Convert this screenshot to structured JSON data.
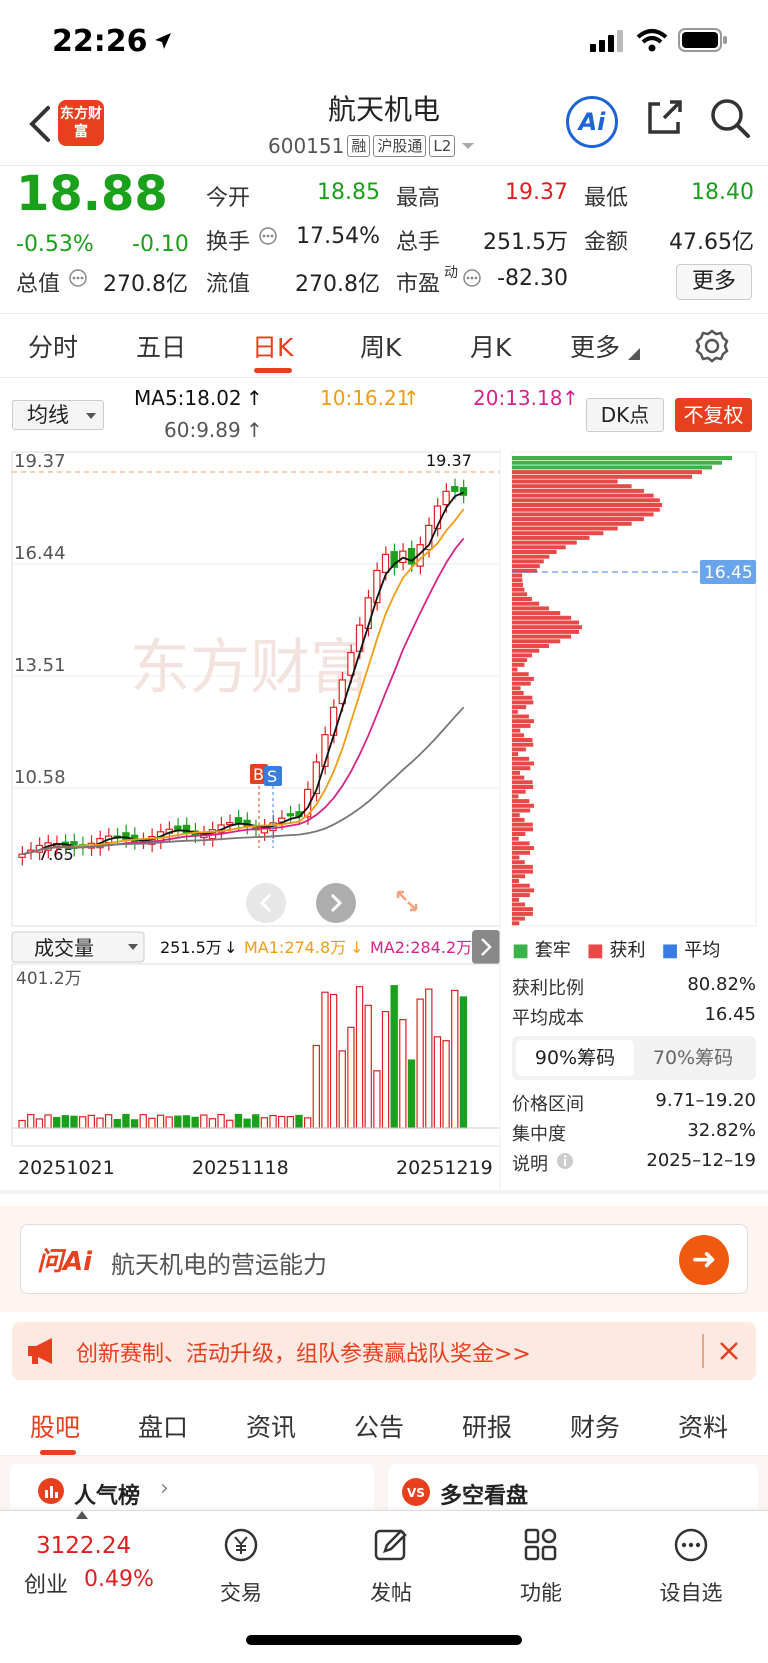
{
  "status": {
    "time": "22:26"
  },
  "header": {
    "logo_text": "东方财富",
    "stock_name": "航天机电",
    "code": "600151",
    "tags": [
      "融",
      "沪股通",
      "L2"
    ]
  },
  "ai_label": "Ai",
  "quote": {
    "price": "18.88",
    "change_pct": "-0.53%",
    "change": "-0.10",
    "rows": [
      [
        {
          "label": "今开",
          "value": "18.85",
          "color": "green"
        },
        {
          "label": "最高",
          "value": "19.37",
          "color": "red"
        },
        {
          "label": "最低",
          "value": "18.40",
          "color": "green"
        }
      ],
      [
        {
          "label": "换手",
          "value": "17.54%",
          "color": "black"
        },
        {
          "label": "总手",
          "value": "251.5万",
          "color": "black"
        },
        {
          "label": "金额",
          "value": "47.65亿",
          "color": "black"
        }
      ]
    ],
    "row3": {
      "total_label": "总值",
      "total_value": "270.8亿",
      "float_label": "流值",
      "float_value": "270.8亿",
      "pe_label": "市盈",
      "pe_sup": "动",
      "pe_value": "-82.30"
    },
    "more": "更多"
  },
  "period_tabs": [
    "分时",
    "五日",
    "日K",
    "周K",
    "月K",
    "更多"
  ],
  "active_period": "日K",
  "ma_row": {
    "select_label": "均线",
    "ma5": "MA5:18.02",
    "ma10": "10:16.21",
    "ma20": "20:13.18",
    "ma60": "60:9.89",
    "dk_label": "DK点",
    "fq_label": "不复权"
  },
  "kline": {
    "y_labels": [
      "19.37",
      "16.44",
      "13.51",
      "10.58"
    ],
    "high_label": "19.37",
    "low_label": "7.65",
    "watermark": "东方财富",
    "markers": [
      "B",
      "S"
    ],
    "cost_tag": "16.45"
  },
  "volume": {
    "select_label": "成交量",
    "vol": "251.5万",
    "ma1": "MA1:274.8万",
    "ma2": "MA2:284.2万",
    "ymax": "401.2万",
    "dates": [
      "20251021",
      "20251118",
      "20251219"
    ]
  },
  "chips": {
    "legend": [
      {
        "label": "套牢",
        "color": "#3cb34a"
      },
      {
        "label": "获利",
        "color": "#e84848"
      },
      {
        "label": "平均",
        "color": "#3a7de0"
      }
    ],
    "stats": [
      {
        "label": "获利比例",
        "value": "80.82%"
      },
      {
        "label": "平均成本",
        "value": "16.45"
      }
    ],
    "tabs": [
      "90%筹码",
      "70%筹码"
    ],
    "stats2": [
      {
        "label": "价格区间",
        "value": "9.71–19.20"
      },
      {
        "label": "集中度",
        "value": "32.82%"
      },
      {
        "label": "说明",
        "value": "2025–12–19"
      }
    ]
  },
  "ask": {
    "logo": "问Ai",
    "text": "航天机电的营运能力"
  },
  "banner": {
    "text": "创新赛制、活动升级，组队参赛赢战队奖金>>"
  },
  "bottom_tabs": [
    "股吧",
    "盘口",
    "资讯",
    "公告",
    "研报",
    "财务",
    "资料"
  ],
  "peek": {
    "left": "人气榜",
    "right": "多空看盘"
  },
  "nav": {
    "index_value": "3122.24",
    "index_name": "创业",
    "index_pct": "0.49%",
    "items": [
      "交易",
      "发帖",
      "功能",
      "设自选"
    ]
  }
}
